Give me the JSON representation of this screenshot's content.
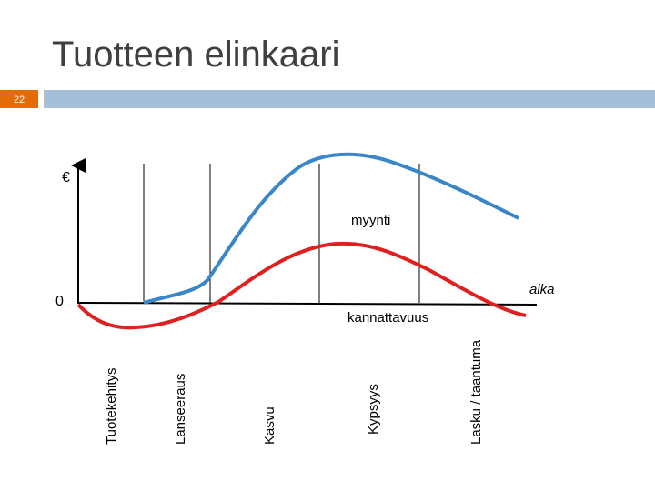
{
  "header": {
    "title": "Tuotteen elinkaari",
    "slide_number": "22"
  },
  "diagram": {
    "y_axis_label": "€",
    "origin_label": "0",
    "x_axis_label": "aika",
    "sales_label": "myynti",
    "profit_label": "kannattavuus",
    "stages": [
      "Tuotekehitys",
      "Lanseeraus",
      "Kasvu",
      "Kypsyys",
      "Lasku / taantuma"
    ]
  }
}
